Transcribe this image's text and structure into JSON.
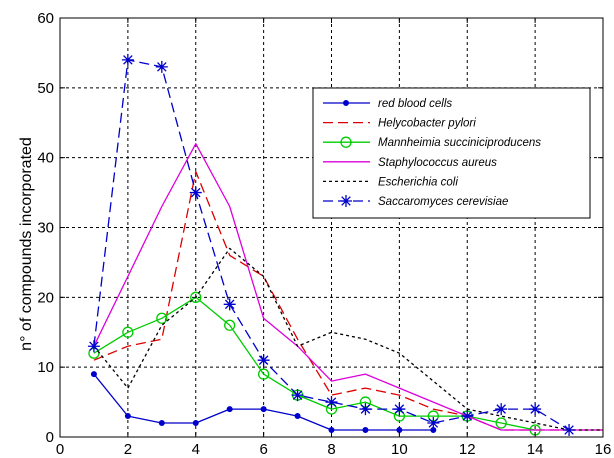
{
  "chart_data": {
    "type": "line",
    "title": "",
    "xlabel": "",
    "ylabel": "n° of compounds incorporated",
    "xlim": [
      0,
      16
    ],
    "ylim": [
      0,
      60
    ],
    "xticks": [
      0,
      2,
      4,
      6,
      8,
      10,
      12,
      14,
      16
    ],
    "yticks": [
      0,
      10,
      20,
      30,
      40,
      50,
      60
    ],
    "grid": true,
    "legend_position": "top-right",
    "series": [
      {
        "name": "red blood cells",
        "color": "#0000cc",
        "line": "solid",
        "marker": "dot",
        "x": [
          1,
          2,
          3,
          4,
          5,
          6,
          7,
          8,
          9,
          10,
          11
        ],
        "y": [
          9,
          3,
          2,
          2,
          4,
          4,
          3,
          1,
          1,
          1,
          1
        ]
      },
      {
        "name": "Helycobacter pylori",
        "color": "#dd0000",
        "line": "dashed",
        "marker": "none",
        "x": [
          1,
          2,
          3,
          4,
          5,
          6,
          7,
          8,
          9,
          10,
          11,
          12,
          13,
          14,
          15,
          16
        ],
        "y": [
          11,
          13,
          14,
          38,
          26,
          23,
          14,
          6,
          7,
          6,
          4,
          3,
          1,
          1,
          1,
          1
        ]
      },
      {
        "name": "Mannheimia succiniciproducens",
        "color": "#00cc00",
        "line": "solid",
        "marker": "circle",
        "x": [
          1,
          2,
          3,
          4,
          5,
          6,
          7,
          8,
          9,
          10,
          11,
          12,
          13,
          14
        ],
        "y": [
          12,
          15,
          17,
          20,
          16,
          9,
          6,
          4,
          5,
          3,
          3,
          3,
          2,
          1
        ]
      },
      {
        "name": "Staphylococcus aureus",
        "color": "#dd00dd",
        "line": "solid",
        "marker": "none",
        "x": [
          1,
          2,
          3,
          4,
          5,
          6,
          7,
          8,
          9,
          10,
          11,
          12,
          13,
          14,
          15,
          16
        ],
        "y": [
          13,
          23,
          33,
          42,
          33,
          17,
          13,
          8,
          9,
          7,
          5,
          3,
          1,
          1,
          1,
          1
        ]
      },
      {
        "name": "Escherichia coli",
        "color": "#000000",
        "line": "dotted",
        "marker": "none",
        "x": [
          1,
          2,
          3,
          4,
          5,
          6,
          7,
          8,
          9,
          10,
          11,
          12,
          13,
          14,
          15,
          16
        ],
        "y": [
          13,
          7,
          16,
          20,
          27,
          23,
          13,
          15,
          14,
          12,
          8,
          4,
          3,
          2,
          1,
          1
        ]
      },
      {
        "name": "Saccaromyces cerevisiae",
        "color": "#0000cc",
        "line": "dashed",
        "marker": "star",
        "x": [
          1,
          2,
          3,
          4,
          5,
          6,
          7,
          8,
          9,
          10,
          11,
          12,
          13,
          14,
          15
        ],
        "y": [
          13,
          54,
          53,
          35,
          19,
          11,
          6,
          5,
          4,
          4,
          2,
          3,
          4,
          4,
          1
        ]
      }
    ]
  }
}
